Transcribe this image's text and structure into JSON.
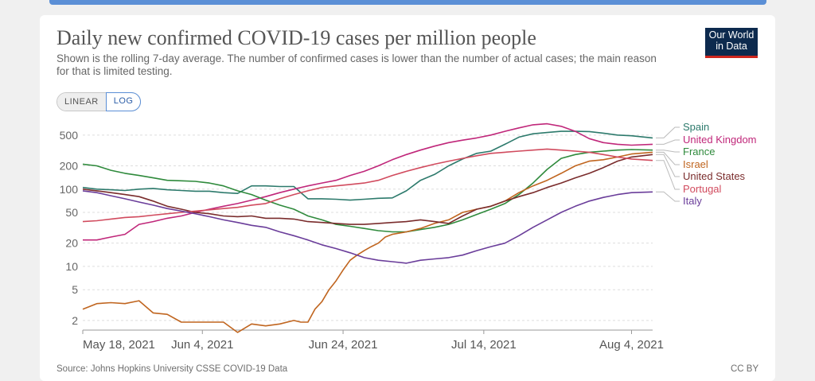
{
  "header": {
    "title": "Daily new confirmed COVID-19 cases per million people",
    "subtitle": "Shown is the rolling 7-day average. The number of confirmed cases is lower than the number of actual cases; the main reason for that is limited testing.",
    "logo_line1": "Our World",
    "logo_line2": "in Data"
  },
  "controls": {
    "linear_label": "LINEAR",
    "log_label": "LOG",
    "selected": "LOG"
  },
  "footer": {
    "source": "Source: Johns Hopkins University CSSE COVID-19 Data",
    "license": "CC BY"
  },
  "colors": {
    "Spain": "#2d7a6c",
    "United Kingdom": "#c0277a",
    "France": "#2f8a3c",
    "Israel": "#c0651f",
    "United States": "#7a2c2c",
    "Portugal": "#d14b5e",
    "Italy": "#6a3d9a"
  },
  "chart_data": {
    "type": "line",
    "title": "Daily new confirmed COVID-19 cases per million people",
    "yscale": "log",
    "ylim": [
      1.5,
      800
    ],
    "xlim": [
      0,
      81
    ],
    "ytick_values": [
      2,
      5,
      10,
      20,
      50,
      100,
      200,
      500
    ],
    "ytick_labels": [
      "2",
      "5",
      "10",
      "20",
      "50",
      "100",
      "200",
      "500"
    ],
    "xtick_labels": [
      {
        "day": 0,
        "label": "May 18, 2021"
      },
      {
        "day": 17,
        "label": "Jun 4, 2021"
      },
      {
        "day": 37,
        "label": "Jun 24, 2021"
      },
      {
        "day": 57,
        "label": "Jul 14, 2021"
      },
      {
        "day": 78,
        "label": "Aug 4, 2021"
      }
    ],
    "series": [
      {
        "name": "Spain",
        "x": [
          0,
          2,
          4,
          6,
          8,
          10,
          12,
          14,
          16,
          18,
          20,
          22,
          24,
          26,
          28,
          30,
          32,
          34,
          36,
          38,
          40,
          42,
          44,
          46,
          48,
          50,
          52,
          54,
          56,
          58,
          60,
          62,
          64,
          66,
          68,
          70,
          72,
          74,
          76,
          78,
          81
        ],
        "values": [
          105,
          100,
          98,
          96,
          100,
          102,
          98,
          96,
          94,
          94,
          90,
          88,
          110,
          110,
          108,
          108,
          75,
          75,
          74,
          72,
          74,
          76,
          77,
          95,
          130,
          155,
          200,
          245,
          290,
          310,
          380,
          470,
          520,
          540,
          560,
          560,
          555,
          530,
          500,
          490,
          460
        ]
      },
      {
        "name": "United Kingdom",
        "x": [
          0,
          2,
          4,
          6,
          8,
          10,
          12,
          14,
          16,
          18,
          20,
          22,
          24,
          26,
          28,
          30,
          32,
          34,
          36,
          38,
          40,
          42,
          44,
          46,
          48,
          50,
          52,
          54,
          56,
          58,
          60,
          62,
          64,
          66,
          68,
          70,
          72,
          74,
          76,
          78,
          81
        ],
        "values": [
          22,
          22,
          24,
          26,
          35,
          38,
          42,
          45,
          50,
          55,
          60,
          65,
          72,
          80,
          90,
          100,
          110,
          120,
          130,
          150,
          170,
          200,
          240,
          280,
          320,
          360,
          400,
          430,
          460,
          500,
          560,
          620,
          680,
          700,
          650,
          560,
          450,
          400,
          380,
          370,
          380
        ]
      },
      {
        "name": "France",
        "x": [
          0,
          2,
          4,
          6,
          8,
          10,
          12,
          14,
          16,
          18,
          20,
          22,
          24,
          26,
          28,
          30,
          32,
          34,
          36,
          38,
          40,
          42,
          44,
          46,
          48,
          50,
          52,
          54,
          56,
          58,
          60,
          62,
          64,
          66,
          68,
          70,
          72,
          74,
          76,
          78,
          81
        ],
        "values": [
          210,
          200,
          175,
          160,
          150,
          140,
          130,
          128,
          126,
          120,
          110,
          95,
          85,
          72,
          62,
          55,
          45,
          40,
          35,
          33,
          31,
          29,
          28,
          28,
          30,
          32,
          35,
          40,
          47,
          55,
          65,
          85,
          120,
          180,
          250,
          280,
          300,
          310,
          320,
          325,
          320
        ]
      },
      {
        "name": "Israel",
        "x": [
          0,
          2,
          4,
          6,
          8,
          10,
          12,
          14,
          16,
          18,
          20,
          22,
          24,
          26,
          28,
          30,
          31,
          32,
          33,
          34,
          35,
          36,
          37,
          38,
          39,
          40,
          41,
          42,
          43,
          44,
          46,
          48,
          50,
          52,
          54,
          56,
          58,
          60,
          62,
          64,
          66,
          68,
          70,
          72,
          74,
          76,
          78,
          81
        ],
        "values": [
          2.8,
          3.3,
          3.4,
          3.3,
          3.6,
          2.5,
          2.4,
          1.9,
          1.9,
          1.9,
          1.9,
          1.4,
          1.8,
          1.7,
          1.8,
          2.0,
          1.9,
          1.9,
          2.8,
          3.5,
          5,
          6.5,
          9,
          12,
          14,
          16,
          18,
          20,
          24,
          26,
          28,
          31,
          36,
          40,
          50,
          55,
          60,
          70,
          90,
          110,
          130,
          160,
          200,
          230,
          240,
          260,
          285,
          300
        ]
      },
      {
        "name": "United States",
        "x": [
          0,
          2,
          4,
          6,
          8,
          10,
          12,
          14,
          16,
          18,
          20,
          22,
          24,
          26,
          28,
          30,
          32,
          34,
          36,
          38,
          40,
          42,
          44,
          46,
          48,
          50,
          52,
          54,
          56,
          58,
          60,
          62,
          64,
          66,
          68,
          70,
          72,
          74,
          76,
          78,
          81
        ],
        "values": [
          100,
          95,
          90,
          85,
          80,
          70,
          60,
          55,
          50,
          48,
          45,
          44,
          45,
          42,
          42,
          41,
          38,
          37,
          36,
          35,
          35,
          36,
          37,
          38,
          40,
          38,
          36,
          45,
          55,
          60,
          70,
          80,
          90,
          105,
          120,
          140,
          160,
          190,
          230,
          260,
          280
        ]
      },
      {
        "name": "Portugal",
        "x": [
          0,
          2,
          4,
          6,
          8,
          10,
          12,
          14,
          16,
          18,
          20,
          22,
          24,
          26,
          28,
          30,
          32,
          34,
          36,
          38,
          40,
          42,
          44,
          46,
          48,
          50,
          52,
          54,
          56,
          58,
          60,
          62,
          64,
          66,
          68,
          70,
          72,
          74,
          76,
          78,
          81
        ],
        "values": [
          38,
          39,
          41,
          43,
          44,
          46,
          48,
          50,
          52,
          54,
          56,
          58,
          62,
          65,
          75,
          85,
          95,
          105,
          110,
          115,
          120,
          130,
          150,
          170,
          190,
          210,
          230,
          250,
          270,
          290,
          300,
          310,
          320,
          330,
          320,
          310,
          300,
          280,
          260,
          245,
          235
        ]
      },
      {
        "name": "Italy",
        "x": [
          0,
          2,
          4,
          6,
          8,
          10,
          12,
          14,
          16,
          18,
          20,
          22,
          24,
          26,
          28,
          30,
          32,
          34,
          36,
          38,
          40,
          42,
          44,
          46,
          48,
          50,
          52,
          54,
          56,
          58,
          60,
          62,
          64,
          66,
          68,
          70,
          72,
          74,
          76,
          78,
          81
        ],
        "values": [
          95,
          90,
          82,
          75,
          68,
          62,
          56,
          52,
          48,
          44,
          40,
          37,
          34,
          32,
          28,
          25,
          22,
          19,
          17,
          15,
          13,
          12,
          11.5,
          11,
          12,
          12.5,
          13,
          14,
          16,
          18,
          20,
          25,
          32,
          40,
          50,
          60,
          70,
          78,
          85,
          90,
          92
        ]
      }
    ],
    "legend": [
      {
        "name": "Spain",
        "label": "Spain"
      },
      {
        "name": "United Kingdom",
        "label": "United Kingdom"
      },
      {
        "name": "France",
        "label": "France"
      },
      {
        "name": "Israel",
        "label": "Israel"
      },
      {
        "name": "United States",
        "label": "United States"
      },
      {
        "name": "Portugal",
        "label": "Portugal"
      },
      {
        "name": "Italy",
        "label": "Italy"
      }
    ]
  }
}
